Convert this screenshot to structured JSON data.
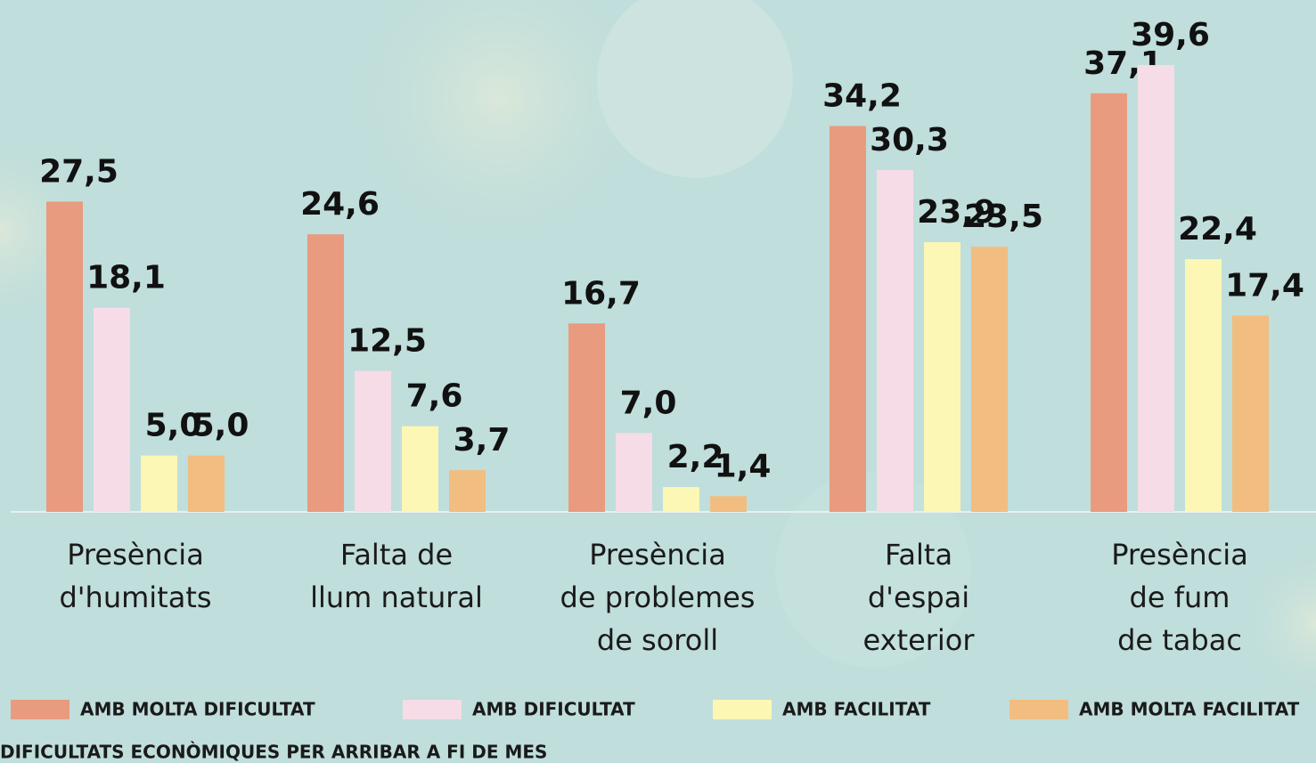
{
  "chart_data": {
    "type": "bar",
    "categories": [
      [
        "Presència",
        "d'humitats"
      ],
      [
        "Falta de",
        "llum natural"
      ],
      [
        "Presència",
        "de problemes",
        "de soroll"
      ],
      [
        "Falta",
        "d'espai",
        "exterior"
      ],
      [
        "Presència",
        "de fum",
        "de tabac"
      ]
    ],
    "series": [
      {
        "name": "AMB MOLTA DIFICULTAT",
        "color": "#e99b7f",
        "values": [
          27.5,
          24.6,
          16.7,
          34.2,
          37.1
        ],
        "value_labels": [
          "27,5",
          "24,6",
          "16,7",
          "34,2",
          "37,1"
        ]
      },
      {
        "name": "AMB DIFICULTAT",
        "color": "#f6dce6",
        "values": [
          18.1,
          12.5,
          7.0,
          30.3,
          39.6
        ],
        "value_labels": [
          "18,1",
          "12,5",
          "7,0",
          "30,3",
          "39,6"
        ]
      },
      {
        "name": "AMB FACILITAT",
        "color": "#fdf7b5",
        "values": [
          5.0,
          7.6,
          2.2,
          23.9,
          22.4
        ],
        "value_labels": [
          "5,0",
          "7,6",
          "2,2",
          "23,9",
          "22,4"
        ]
      },
      {
        "name": "AMB MOLTA FACILITAT",
        "color": "#f2bd80",
        "values": [
          5.0,
          3.7,
          1.4,
          23.5,
          17.4
        ],
        "value_labels": [
          "5,0",
          "3,7",
          "1,4",
          "23,5",
          "17,4"
        ]
      }
    ],
    "legend_title": "DIFICULTATS ECONÒMIQUES PER ARRIBAR A FI DE MES",
    "ylim": [
      0,
      40
    ],
    "legend": "bottom"
  }
}
